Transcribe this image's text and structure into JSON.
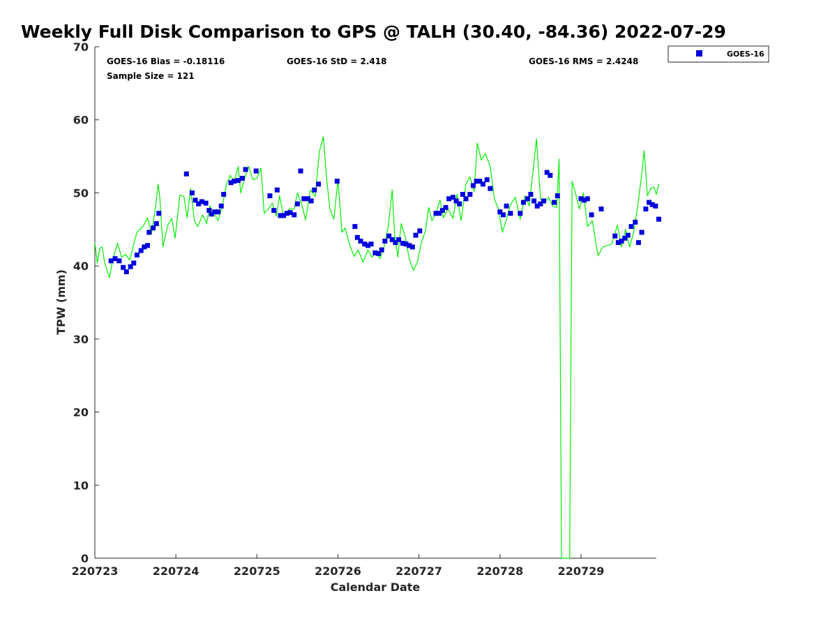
{
  "chart_data": {
    "type": "scatter",
    "title": "Weekly Full Disk Comparison to GPS @ TALH (30.40, -84.36) 2022-07-29",
    "xlabel": "Calendar Date",
    "ylabel": "TPW (mm)",
    "xlim": [
      220723,
      220729.93
    ],
    "ylim": [
      0,
      70
    ],
    "x_ticks": [
      {
        "value": 220723,
        "label": "220723"
      },
      {
        "value": 220724,
        "label": "220724"
      },
      {
        "value": 220725,
        "label": "220725"
      },
      {
        "value": 220726,
        "label": "220726"
      },
      {
        "value": 220727,
        "label": "220727"
      },
      {
        "value": 220728,
        "label": "220728"
      },
      {
        "value": 220729,
        "label": "220729"
      }
    ],
    "y_ticks": [
      0,
      10,
      20,
      30,
      40,
      50,
      60,
      70
    ],
    "grid": false,
    "legend_position": "outside top-right",
    "stats": {
      "bias": "GOES-16 Bias = -0.18116",
      "std": "GOES-16 StD = 2.418",
      "rms": "GOES-16 RMS = 2.4248",
      "sample_size": "Sample Size = 121"
    },
    "series": [
      {
        "name": "GOES-16",
        "kind": "scatter",
        "marker": "square",
        "color": "#0000dd",
        "points": [
          [
            220723.2,
            40.7
          ],
          [
            220723.25,
            41.0
          ],
          [
            220723.3,
            40.7
          ],
          [
            220723.35,
            39.8
          ],
          [
            220723.39,
            39.2
          ],
          [
            220723.44,
            39.9
          ],
          [
            220723.48,
            40.4
          ],
          [
            220723.52,
            41.5
          ],
          [
            220723.57,
            42.1
          ],
          [
            220723.61,
            42.6
          ],
          [
            220723.65,
            42.8
          ],
          [
            220723.67,
            44.6
          ],
          [
            220723.72,
            45.2
          ],
          [
            220723.76,
            45.8
          ],
          [
            220723.79,
            47.2
          ],
          [
            220724.13,
            52.6
          ],
          [
            220724.2,
            50.0
          ],
          [
            220724.24,
            49.0
          ],
          [
            220724.28,
            48.5
          ],
          [
            220724.32,
            48.8
          ],
          [
            220724.37,
            48.6
          ],
          [
            220724.41,
            47.6
          ],
          [
            220724.44,
            47.1
          ],
          [
            220724.48,
            47.4
          ],
          [
            220724.52,
            47.4
          ],
          [
            220724.56,
            48.2
          ],
          [
            220724.59,
            49.8
          ],
          [
            220724.68,
            51.4
          ],
          [
            220724.72,
            51.6
          ],
          [
            220724.77,
            51.7
          ],
          [
            220724.82,
            52.0
          ],
          [
            220724.86,
            53.2
          ],
          [
            220724.99,
            53.0
          ],
          [
            220725.16,
            49.6
          ],
          [
            220725.21,
            47.6
          ],
          [
            220725.25,
            50.4
          ],
          [
            220725.29,
            46.9
          ],
          [
            220725.33,
            46.9
          ],
          [
            220725.37,
            47.2
          ],
          [
            220725.41,
            47.3
          ],
          [
            220725.46,
            47.0
          ],
          [
            220725.5,
            48.5
          ],
          [
            220725.54,
            53.0
          ],
          [
            220725.58,
            49.2
          ],
          [
            220725.63,
            49.2
          ],
          [
            220725.67,
            48.9
          ],
          [
            220725.71,
            50.4
          ],
          [
            220725.76,
            51.2
          ],
          [
            220725.99,
            51.6
          ],
          [
            220726.21,
            45.4
          ],
          [
            220726.24,
            43.9
          ],
          [
            220726.28,
            43.4
          ],
          [
            220726.33,
            43.0
          ],
          [
            220726.37,
            42.8
          ],
          [
            220726.41,
            43.0
          ],
          [
            220726.46,
            41.8
          ],
          [
            220726.5,
            41.7
          ],
          [
            220726.54,
            42.2
          ],
          [
            220726.58,
            43.4
          ],
          [
            220726.63,
            44.1
          ],
          [
            220726.67,
            43.6
          ],
          [
            220726.71,
            43.2
          ],
          [
            220726.75,
            43.6
          ],
          [
            220726.8,
            43.1
          ],
          [
            220726.84,
            43.0
          ],
          [
            220726.88,
            42.8
          ],
          [
            220726.92,
            42.6
          ],
          [
            220726.96,
            44.2
          ],
          [
            220727.01,
            44.8
          ],
          [
            220727.21,
            47.2
          ],
          [
            220727.25,
            47.2
          ],
          [
            220727.29,
            47.6
          ],
          [
            220727.33,
            48.0
          ],
          [
            220727.37,
            49.2
          ],
          [
            220727.42,
            49.4
          ],
          [
            220727.46,
            48.9
          ],
          [
            220727.5,
            48.5
          ],
          [
            220727.54,
            49.8
          ],
          [
            220727.58,
            49.2
          ],
          [
            220727.63,
            49.8
          ],
          [
            220727.67,
            51.0
          ],
          [
            220727.71,
            51.6
          ],
          [
            220727.75,
            51.6
          ],
          [
            220727.79,
            51.2
          ],
          [
            220727.84,
            51.8
          ],
          [
            220727.88,
            50.6
          ],
          [
            220728.0,
            47.4
          ],
          [
            220728.04,
            47.0
          ],
          [
            220728.08,
            48.2
          ],
          [
            220728.13,
            47.2
          ],
          [
            220728.25,
            47.2
          ],
          [
            220728.29,
            48.7
          ],
          [
            220728.34,
            49.2
          ],
          [
            220728.38,
            49.8
          ],
          [
            220728.42,
            48.9
          ],
          [
            220728.46,
            48.2
          ],
          [
            220728.5,
            48.5
          ],
          [
            220728.54,
            48.9
          ],
          [
            220728.58,
            52.8
          ],
          [
            220728.62,
            52.4
          ],
          [
            220728.67,
            48.7
          ],
          [
            220728.71,
            49.6
          ],
          [
            220729.0,
            49.2
          ],
          [
            220729.04,
            49.0
          ],
          [
            220729.08,
            49.2
          ],
          [
            220729.13,
            47.0
          ],
          [
            220729.25,
            47.8
          ],
          [
            220729.42,
            44.1
          ],
          [
            220729.46,
            43.2
          ],
          [
            220729.5,
            43.4
          ],
          [
            220729.54,
            43.8
          ],
          [
            220729.58,
            44.2
          ],
          [
            220729.62,
            45.4
          ],
          [
            220729.67,
            46.0
          ],
          [
            220729.71,
            43.2
          ],
          [
            220729.75,
            44.6
          ],
          [
            220729.8,
            47.8
          ],
          [
            220729.84,
            48.7
          ],
          [
            220729.88,
            48.4
          ],
          [
            220729.92,
            48.2
          ],
          [
            220729.96,
            46.4
          ]
        ]
      },
      {
        "name": "",
        "kind": "line",
        "color": "#00ee00",
        "points": [
          [
            220723.0,
            43.2
          ],
          [
            220723.03,
            40.4
          ],
          [
            220723.06,
            42.4
          ],
          [
            220723.09,
            42.6
          ],
          [
            220723.12,
            40.5
          ],
          [
            220723.18,
            38.4
          ],
          [
            220723.22,
            40.8
          ],
          [
            220723.28,
            43.1
          ],
          [
            220723.33,
            41.2
          ],
          [
            220723.38,
            41.6
          ],
          [
            220723.43,
            40.8
          ],
          [
            220723.48,
            43.0
          ],
          [
            220723.52,
            44.6
          ],
          [
            220723.6,
            45.5
          ],
          [
            220723.65,
            46.6
          ],
          [
            220723.7,
            44.4
          ],
          [
            220723.75,
            48.2
          ],
          [
            220723.78,
            51.2
          ],
          [
            220723.8,
            49.6
          ],
          [
            220723.84,
            42.6
          ],
          [
            220723.9,
            45.6
          ],
          [
            220723.95,
            46.5
          ],
          [
            220723.99,
            43.8
          ],
          [
            220724.05,
            49.7
          ],
          [
            220724.1,
            49.5
          ],
          [
            220724.14,
            46.6
          ],
          [
            220724.18,
            50.6
          ],
          [
            220724.23,
            46.1
          ],
          [
            220724.27,
            45.4
          ],
          [
            220724.33,
            47.0
          ],
          [
            220724.38,
            45.8
          ],
          [
            220724.42,
            48.2
          ],
          [
            220724.47,
            47.2
          ],
          [
            220724.52,
            46.2
          ],
          [
            220724.57,
            48.0
          ],
          [
            220724.62,
            51.0
          ],
          [
            220724.67,
            52.4
          ],
          [
            220724.72,
            51.6
          ],
          [
            220724.77,
            53.6
          ],
          [
            220724.8,
            50.0
          ],
          [
            220724.86,
            52.4
          ],
          [
            220724.9,
            53.6
          ],
          [
            220724.95,
            51.8
          ],
          [
            220725.0,
            52.0
          ],
          [
            220725.05,
            53.4
          ],
          [
            220725.09,
            47.2
          ],
          [
            220725.14,
            47.8
          ],
          [
            220725.19,
            48.6
          ],
          [
            220725.24,
            46.8
          ],
          [
            220725.28,
            49.6
          ],
          [
            220725.33,
            46.8
          ],
          [
            220725.4,
            47.8
          ],
          [
            220725.46,
            47.8
          ],
          [
            220725.5,
            50.0
          ],
          [
            220725.56,
            48.2
          ],
          [
            220725.6,
            46.3
          ],
          [
            220725.66,
            50.4
          ],
          [
            220725.72,
            49.5
          ],
          [
            220725.77,
            55.6
          ],
          [
            220725.82,
            57.7
          ],
          [
            220725.86,
            52.0
          ],
          [
            220725.9,
            47.8
          ],
          [
            220725.95,
            46.4
          ],
          [
            220726.0,
            51.8
          ],
          [
            220726.05,
            44.6
          ],
          [
            220726.09,
            45.2
          ],
          [
            220726.14,
            43.0
          ],
          [
            220726.2,
            41.3
          ],
          [
            220726.25,
            42.2
          ],
          [
            220726.31,
            40.5
          ],
          [
            220726.37,
            42.2
          ],
          [
            220726.42,
            41.2
          ],
          [
            220726.47,
            41.8
          ],
          [
            220726.52,
            41.0
          ],
          [
            220726.57,
            42.6
          ],
          [
            220726.62,
            45.4
          ],
          [
            220726.67,
            50.4
          ],
          [
            220726.7,
            44.2
          ],
          [
            220726.74,
            41.2
          ],
          [
            220726.78,
            45.8
          ],
          [
            220726.83,
            44.0
          ],
          [
            220726.88,
            41.0
          ],
          [
            220726.93,
            39.4
          ],
          [
            220726.98,
            40.5
          ],
          [
            220727.03,
            43.2
          ],
          [
            220727.08,
            44.8
          ],
          [
            220727.12,
            48.0
          ],
          [
            220727.16,
            46.2
          ],
          [
            220727.21,
            47.2
          ],
          [
            220727.26,
            49.0
          ],
          [
            220727.3,
            46.6
          ],
          [
            220727.36,
            47.8
          ],
          [
            220727.42,
            46.5
          ],
          [
            220727.47,
            49.8
          ],
          [
            220727.52,
            46.2
          ],
          [
            220727.58,
            51.2
          ],
          [
            220727.63,
            52.2
          ],
          [
            220727.68,
            50.2
          ],
          [
            220727.72,
            56.8
          ],
          [
            220727.77,
            54.5
          ],
          [
            220727.82,
            55.4
          ],
          [
            220727.88,
            53.6
          ],
          [
            220727.93,
            49.2
          ],
          [
            220727.98,
            47.8
          ],
          [
            220728.03,
            44.6
          ],
          [
            220728.08,
            46.4
          ],
          [
            220728.13,
            48.4
          ],
          [
            220728.19,
            49.4
          ],
          [
            220728.25,
            46.4
          ],
          [
            220728.31,
            49.6
          ],
          [
            220728.36,
            48.2
          ],
          [
            220728.41,
            53.2
          ],
          [
            220728.45,
            57.4
          ],
          [
            220728.5,
            49.2
          ],
          [
            220728.55,
            48.6
          ],
          [
            220728.6,
            49.4
          ],
          [
            220728.65,
            48.2
          ],
          [
            220728.7,
            48.0
          ],
          [
            220728.73,
            54.6
          ],
          [
            220728.76,
            0
          ],
          [
            220728.86,
            0
          ],
          [
            220728.89,
            51.6
          ],
          [
            220728.94,
            49.6
          ],
          [
            220728.98,
            47.8
          ],
          [
            220729.03,
            50.0
          ],
          [
            220729.08,
            45.4
          ],
          [
            220729.14,
            46.2
          ],
          [
            220729.21,
            41.4
          ],
          [
            220729.27,
            42.6
          ],
          [
            220729.33,
            42.8
          ],
          [
            220729.38,
            43.0
          ],
          [
            220729.45,
            45.6
          ],
          [
            220729.5,
            42.6
          ],
          [
            220729.55,
            45.0
          ],
          [
            220729.6,
            42.6
          ],
          [
            220729.65,
            44.6
          ],
          [
            220729.7,
            48.2
          ],
          [
            220729.75,
            52.6
          ],
          [
            220729.78,
            55.8
          ],
          [
            220729.82,
            49.6
          ],
          [
            220729.86,
            50.6
          ],
          [
            220729.9,
            50.8
          ],
          [
            220729.93,
            49.8
          ],
          [
            220729.96,
            51.2
          ]
        ]
      }
    ]
  }
}
